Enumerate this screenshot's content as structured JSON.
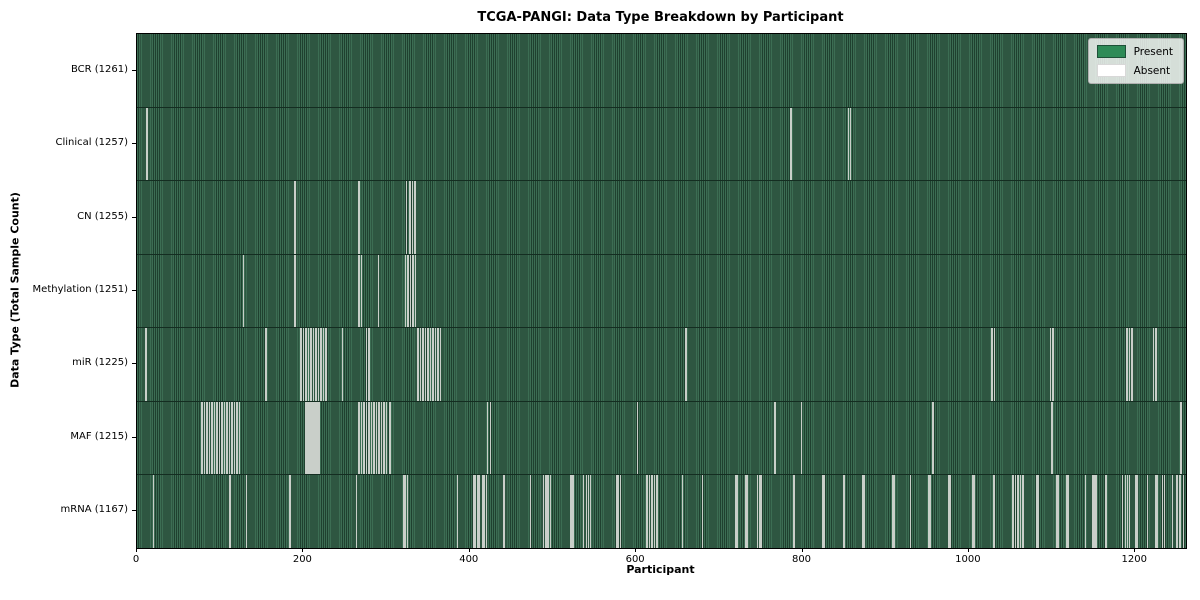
{
  "title": "TCGA-PANGI: Data Type Breakdown by Participant",
  "axes": {
    "xlabel": "Participant",
    "ylabel": "Data Type (Total Sample Count)"
  },
  "legend": {
    "position": "upper right",
    "items": [
      {
        "label": "Present",
        "color": "#2e8b57"
      },
      {
        "label": "Absent",
        "color": "#ffffff"
      }
    ]
  },
  "colors": {
    "present_fill": "#2e8b57",
    "stripe_light": "#3c6d53",
    "stripe_dark": "#1f402f",
    "absent_line": "#c9cfc9",
    "row_separator": "#142d21",
    "legend_bg": "rgba(255,255,255,0.8)",
    "legend_border": "#b0b0b0"
  },
  "chart_data": {
    "type": "heatmap",
    "title": "TCGA-PANGI: Data Type Breakdown by Participant",
    "xlabel": "Participant",
    "ylabel": "Data Type (Total Sample Count)",
    "n_participants": 1261,
    "xlim": [
      0,
      1261
    ],
    "x_ticks": [
      0,
      200,
      400,
      600,
      800,
      1000,
      1200
    ],
    "grid": false,
    "legend_entries": [
      "Present",
      "Absent"
    ],
    "legend_position": "upper right",
    "rows": [
      {
        "label": "BCR (1261)",
        "data_type": "BCR",
        "present_count": 1261,
        "absent_count": 0,
        "absent_participant_indices": []
      },
      {
        "label": "Clinical (1257)",
        "data_type": "Clinical",
        "present_count": 1257,
        "absent_count": 4,
        "absent_participant_indices": [
          12,
          786,
          855,
          858
        ]
      },
      {
        "label": "CN (1255)",
        "data_type": "CN",
        "present_count": 1255,
        "absent_count": 6,
        "absent_participant_indices": [
          190,
          267,
          324,
          328,
          331,
          334
        ]
      },
      {
        "label": "Methylation (1251)",
        "data_type": "Methylation",
        "present_count": 1251,
        "absent_count": 10,
        "absent_participant_indices": [
          128,
          190,
          267,
          270,
          290,
          323,
          326,
          329,
          332,
          335
        ]
      },
      {
        "label": "miR (1225)",
        "data_type": "miR",
        "present_count": 1225,
        "absent_count": 36,
        "absent_participant_indices": [
          11,
          155,
          197,
          200,
          203,
          206,
          209,
          212,
          215,
          218,
          221,
          224,
          227,
          247,
          276,
          279,
          338,
          341,
          344,
          347,
          350,
          353,
          356,
          359,
          362,
          365,
          660,
          1028,
          1031,
          1098,
          1101,
          1190,
          1193,
          1196,
          1222,
          1225
        ]
      },
      {
        "label": "MAF (1215)",
        "data_type": "MAF",
        "present_count": 1215,
        "absent_count": 46,
        "absent_participant_indices": [
          78,
          81,
          84,
          87,
          90,
          93,
          96,
          99,
          102,
          105,
          108,
          111,
          114,
          117,
          120,
          123,
          203,
          205,
          207,
          209,
          211,
          213,
          215,
          217,
          219,
          267,
          270,
          273,
          276,
          279,
          282,
          285,
          288,
          291,
          294,
          297,
          300,
          304,
          421,
          425,
          602,
          767,
          799,
          957,
          1100,
          1255
        ]
      },
      {
        "label": "mRNA (1167)",
        "data_type": "mRNA",
        "present_count": 1167,
        "absent_count": 94,
        "absent_participant_indices": [
          20,
          112,
          132,
          184,
          264,
          320,
          322,
          325,
          385,
          405,
          407,
          410,
          412,
          415,
          417,
          420,
          441,
          473,
          489,
          491,
          493,
          495,
          497,
          521,
          523,
          525,
          537,
          540,
          543,
          545,
          577,
          579,
          581,
          613,
          616,
          619,
          622,
          625,
          656,
          680,
          720,
          722,
          732,
          734,
          746,
          748,
          750,
          790,
          824,
          826,
          850,
          872,
          874,
          908,
          910,
          930,
          952,
          954,
          976,
          978,
          1004,
          1006,
          1030,
          1053,
          1056,
          1059,
          1062,
          1065,
          1081,
          1083,
          1105,
          1107,
          1117,
          1119,
          1140,
          1149,
          1151,
          1153,
          1165,
          1185,
          1188,
          1191,
          1193,
          1201,
          1203,
          1215,
          1225,
          1227,
          1233,
          1235,
          1245,
          1250,
          1254,
          1258
        ]
      }
    ]
  }
}
